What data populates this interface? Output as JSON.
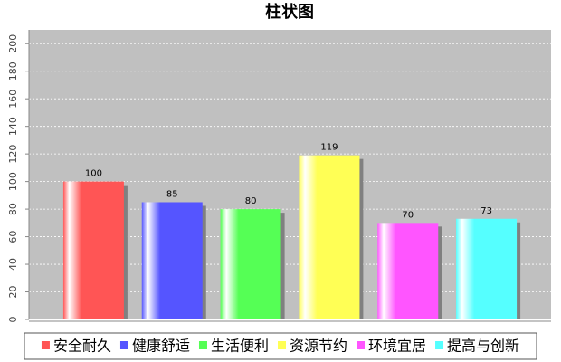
{
  "chart_data": {
    "type": "bar",
    "title": "柱状图",
    "categories": [
      null
    ],
    "series": [
      {
        "name": "安全耐久",
        "color": "#ff5555",
        "values": [
          100
        ]
      },
      {
        "name": "健康舒适",
        "color": "#5555ff",
        "values": [
          85
        ]
      },
      {
        "name": "生活便利",
        "color": "#55ff55",
        "values": [
          80
        ]
      },
      {
        "name": "资源节约",
        "color": "#ffff55",
        "values": [
          119
        ]
      },
      {
        "name": "环境宜居",
        "color": "#ff55ff",
        "values": [
          70
        ]
      },
      {
        "name": "提高与创新",
        "color": "#55ffff",
        "values": [
          73
        ]
      }
    ],
    "ylim": [
      0,
      210
    ],
    "yticks": [
      0,
      20,
      40,
      60,
      80,
      100,
      120,
      140,
      160,
      180,
      200
    ],
    "grid": true
  }
}
